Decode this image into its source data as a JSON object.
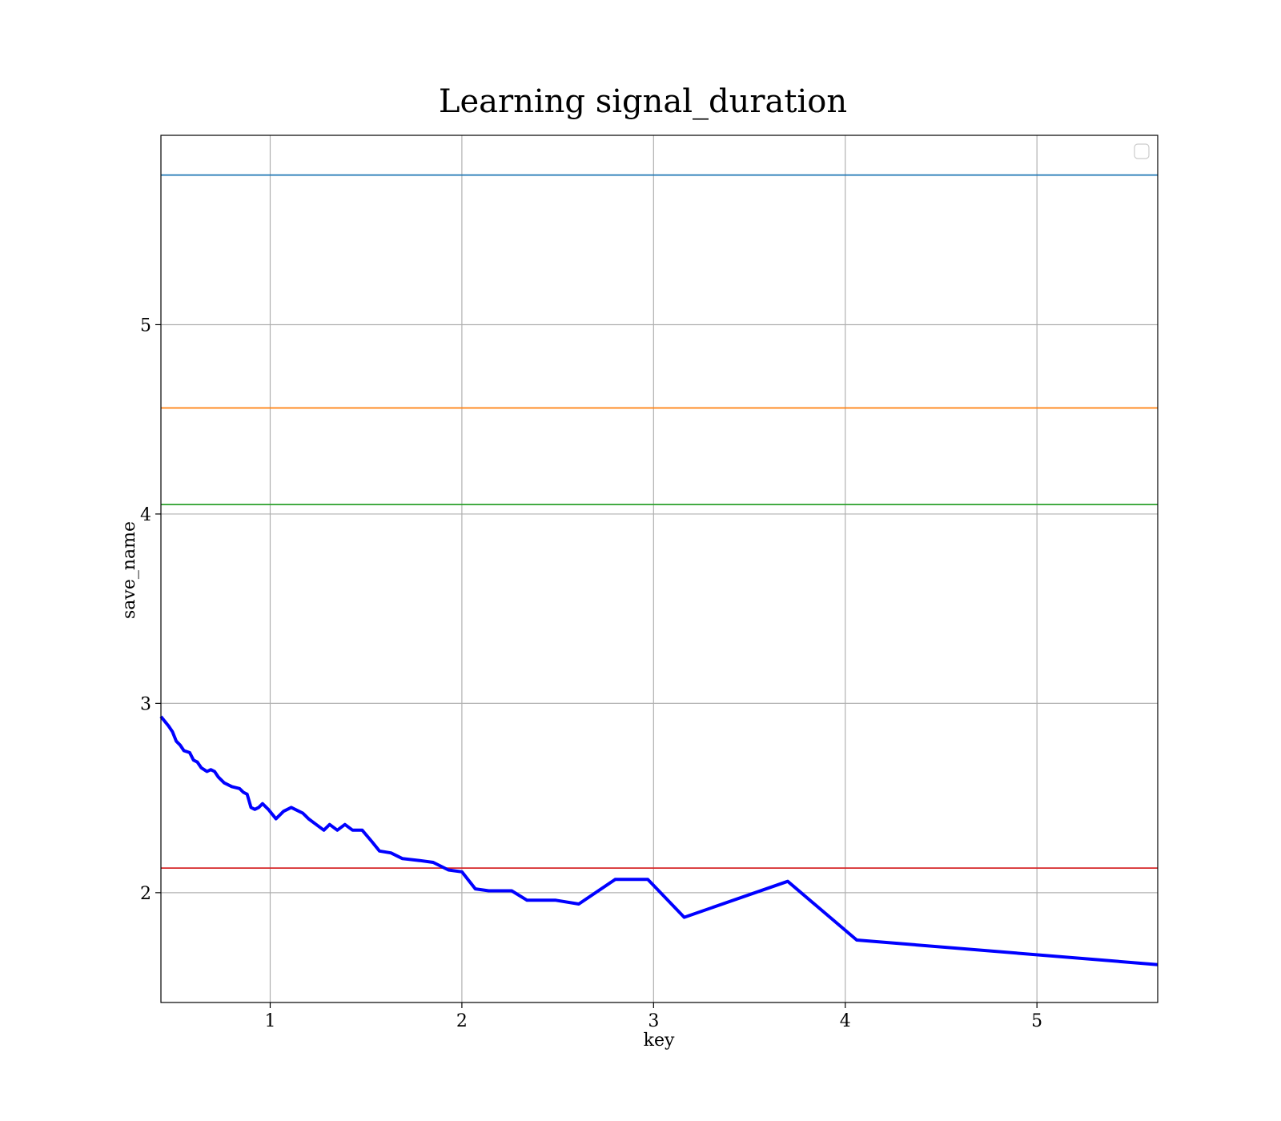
{
  "chart_data": {
    "type": "line",
    "title": "Learning signal_duration",
    "xlabel": "key",
    "ylabel": "save_name",
    "xlim": [
      0.43,
      5.63
    ],
    "ylim": [
      1.42,
      6.0
    ],
    "xticks": [
      1,
      2,
      3,
      4,
      5
    ],
    "yticks": [
      2,
      3,
      4,
      5
    ],
    "grid": true,
    "legend": {
      "location": "upper-right",
      "entries": []
    },
    "hlines": [
      {
        "y": 5.79,
        "color": "#1f77b4"
      },
      {
        "y": 4.56,
        "color": "#ff7f0e"
      },
      {
        "y": 4.05,
        "color": "#2ca02c"
      },
      {
        "y": 2.13,
        "color": "#d62728"
      }
    ],
    "series": [
      {
        "color": "#0000ff",
        "x": [
          0.43,
          0.47,
          0.49,
          0.51,
          0.53,
          0.55,
          0.58,
          0.6,
          0.62,
          0.64,
          0.67,
          0.69,
          0.71,
          0.73,
          0.76,
          0.8,
          0.84,
          0.86,
          0.88,
          0.9,
          0.92,
          0.94,
          0.96,
          0.99,
          1.03,
          1.07,
          1.11,
          1.13,
          1.17,
          1.2,
          1.24,
          1.28,
          1.31,
          1.35,
          1.39,
          1.43,
          1.48,
          1.53,
          1.57,
          1.63,
          1.69,
          1.78,
          1.85,
          1.93,
          2.0,
          2.07,
          2.14,
          2.26,
          2.34,
          2.49,
          2.61,
          2.8,
          2.97,
          3.16,
          3.7,
          4.06,
          5.63
        ],
        "y": [
          2.93,
          2.88,
          2.85,
          2.8,
          2.78,
          2.75,
          2.74,
          2.7,
          2.69,
          2.66,
          2.64,
          2.65,
          2.64,
          2.61,
          2.58,
          2.56,
          2.55,
          2.53,
          2.52,
          2.45,
          2.44,
          2.45,
          2.47,
          2.44,
          2.39,
          2.43,
          2.45,
          2.44,
          2.42,
          2.39,
          2.36,
          2.33,
          2.36,
          2.33,
          2.36,
          2.33,
          2.33,
          2.27,
          2.22,
          2.21,
          2.18,
          2.17,
          2.16,
          2.12,
          2.11,
          2.02,
          2.01,
          2.01,
          1.96,
          1.96,
          1.94,
          2.07,
          2.07,
          1.87,
          2.06,
          1.75,
          1.62
        ]
      }
    ]
  }
}
